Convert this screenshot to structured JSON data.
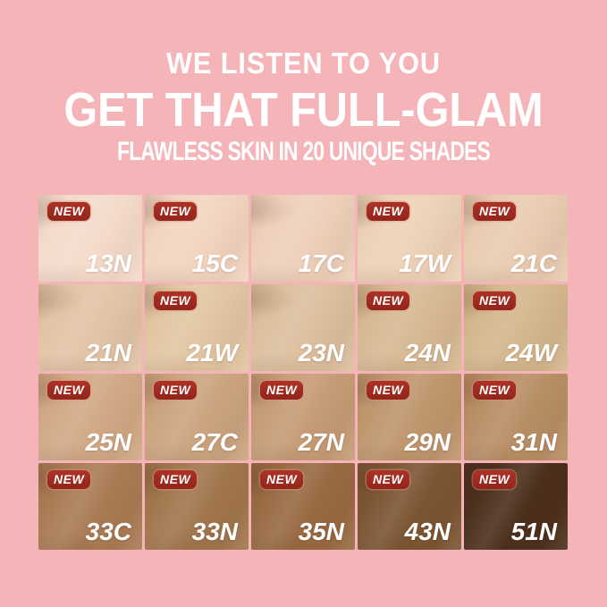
{
  "header": {
    "line1": "WE LISTEN TO YOU",
    "line2": "GET THAT FULL-GLAM",
    "line3": "FLAWLESS SKIN IN 20 UNIQUE SHADES"
  },
  "badge_label": "NEW",
  "colors": {
    "background": "#f4b4b8",
    "badge_red": "#a02b20",
    "text": "#ffffff"
  },
  "shade_count": 20,
  "shades": [
    {
      "code": "13N",
      "new": true,
      "color": "#f4dbcb"
    },
    {
      "code": "15C",
      "new": true,
      "color": "#f2d5c0"
    },
    {
      "code": "17C",
      "new": false,
      "color": "#eed0ba"
    },
    {
      "code": "17W",
      "new": true,
      "color": "#edd2b7"
    },
    {
      "code": "21C",
      "new": true,
      "color": "#e9ccb1"
    },
    {
      "code": "21N",
      "new": false,
      "color": "#e2c4a7"
    },
    {
      "code": "21W",
      "new": true,
      "color": "#e2c6a3"
    },
    {
      "code": "23N",
      "new": false,
      "color": "#dcbf9e"
    },
    {
      "code": "24N",
      "new": true,
      "color": "#d7b993"
    },
    {
      "code": "24W",
      "new": true,
      "color": "#d4b78d"
    },
    {
      "code": "25N",
      "new": true,
      "color": "#d1a986"
    },
    {
      "code": "27C",
      "new": true,
      "color": "#cba47f"
    },
    {
      "code": "27N",
      "new": true,
      "color": "#c69c76"
    },
    {
      "code": "29N",
      "new": true,
      "color": "#bf966d"
    },
    {
      "code": "31N",
      "new": true,
      "color": "#b88e65"
    },
    {
      "code": "33C",
      "new": true,
      "color": "#a97b54"
    },
    {
      "code": "33N",
      "new": true,
      "color": "#a1764d"
    },
    {
      "code": "35N",
      "new": true,
      "color": "#986a42"
    },
    {
      "code": "43N",
      "new": true,
      "color": "#7b5533"
    },
    {
      "code": "51N",
      "new": true,
      "color": "#4b2f1c"
    }
  ]
}
